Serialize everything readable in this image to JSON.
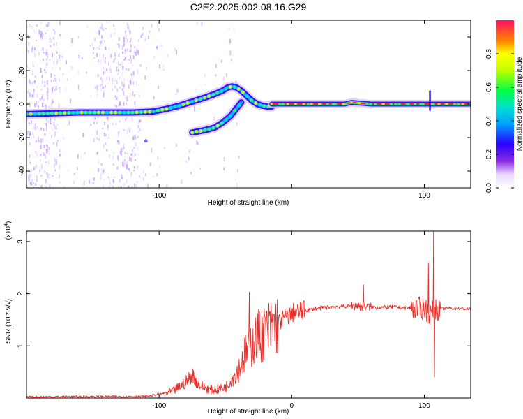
{
  "figure_title": "C2E2.2025.002.08.16.G29",
  "colors": {
    "snr_line": "#e8302a",
    "frame": "#000000",
    "track_core": "#ff2020",
    "track_mid": "#30ff60",
    "track_outer": "#4010ff",
    "speckle": "#b080ff"
  },
  "chart_data": [
    {
      "type": "heatmap",
      "title": "",
      "xlabel": "Height of straight line (km)",
      "ylabel": "Frequency (Hz)",
      "xlim": [
        -200,
        135
      ],
      "ylim": [
        -50,
        50
      ],
      "xticks": [
        -100,
        0,
        100
      ],
      "xtick_labels": [
        "-100",
        "",
        "100"
      ],
      "yticks": [
        -40,
        -20,
        0,
        20,
        40
      ],
      "ytick_labels": [
        "-40",
        "-20",
        "0",
        "20",
        "40"
      ],
      "colorbar": {
        "label": "Normalized spectral amplitude",
        "range": [
          0,
          1
        ],
        "ticks": [
          0.0,
          0.2,
          0.4,
          0.6,
          0.8
        ],
        "tick_labels": [
          "0.0",
          "0.2",
          "0.4",
          "0.6",
          "0.8"
        ],
        "colormap": "rainbow"
      },
      "tracks": [
        {
          "x": [
            -200,
            -180,
            -160,
            -140,
            -120,
            -105,
            -95,
            -85,
            -75,
            -65,
            -58,
            -52,
            -48,
            -45,
            -42,
            -38,
            -34,
            -30,
            -26,
            -22,
            -18,
            -15
          ],
          "y": [
            -6,
            -5.5,
            -5,
            -5,
            -5,
            -4.5,
            -3,
            -1,
            1.5,
            4,
            6,
            8,
            10,
            10.5,
            10,
            8,
            5,
            2,
            0,
            -1,
            -1.5,
            -1.5
          ]
        },
        {
          "x": [
            -15,
            0,
            20,
            40,
            45,
            60,
            80,
            100,
            104,
            135
          ],
          "y": [
            0,
            0,
            0,
            0,
            1,
            0,
            0,
            0,
            0,
            0
          ]
        },
        {
          "x": [
            -75,
            -65,
            -58,
            -52,
            -46,
            -42,
            -38
          ],
          "y": [
            -17,
            -15.5,
            -14,
            -11,
            -7,
            -3,
            1
          ]
        }
      ]
    },
    {
      "type": "line",
      "title": "",
      "xlabel": "Height of straight line (km)",
      "ylabel": "SNR (10 * v/v)",
      "scale_label": "(x10",
      "scale_exponent": "4",
      "scale_suffix": ")",
      "xlim": [
        -200,
        135
      ],
      "ylim": [
        0,
        3.2
      ],
      "xticks": [
        -100,
        0,
        100
      ],
      "xtick_labels": [
        "-100",
        "0",
        "100"
      ],
      "yticks": [
        1,
        2,
        3
      ],
      "ytick_labels": [
        "1",
        "2",
        "3"
      ],
      "series": [
        {
          "x": [
            -200,
            -150,
            -110,
            -90,
            -80,
            -75,
            -70,
            -60,
            -50,
            -40,
            -35,
            -30,
            -25,
            -20,
            -15,
            -10,
            -5,
            0,
            10,
            20,
            30,
            40,
            50,
            55,
            60,
            80,
            100,
            105,
            108,
            115,
            125,
            135
          ],
          "y": [
            0.02,
            0.03,
            0.03,
            0.12,
            0.3,
            0.45,
            0.25,
            0.15,
            0.2,
            0.55,
            0.85,
            1.05,
            1.2,
            1.25,
            1.35,
            1.45,
            1.55,
            1.62,
            1.68,
            1.72,
            1.75,
            1.76,
            1.77,
            1.75,
            1.74,
            1.74,
            1.72,
            1.6,
            1.7,
            1.72,
            1.72,
            1.7
          ]
        }
      ],
      "annotations": [
        {
          "x": -32,
          "y": 2.03
        },
        {
          "x": -20,
          "y": 1.55
        },
        {
          "x": 54,
          "y": 2.18
        },
        {
          "x": 103,
          "y": 2.6
        },
        {
          "x": 107,
          "y": 3.2
        },
        {
          "x": 107.5,
          "y": 0.4
        }
      ]
    }
  ]
}
